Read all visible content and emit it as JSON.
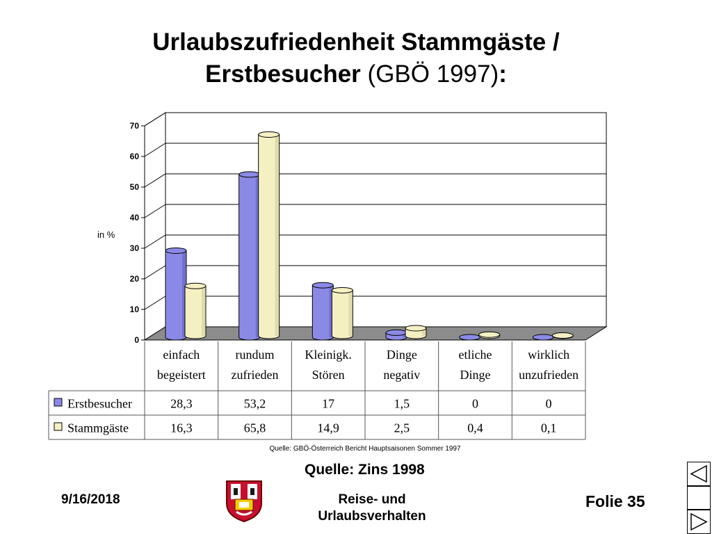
{
  "slide": {
    "title_bold_1": "Urlaubszufriedenheit Stammgäste /",
    "title_bold_2": "Erstbesucher",
    "title_normal": " (GBÖ 1997)",
    "title_colon": ":",
    "quelle": "Quelle: Zins 1998",
    "footer_date": "9/16/2018",
    "footer_center_1": "Reise- und",
    "footer_center_2": "Urlaubsverhalten",
    "footer_folie": "Folie 35"
  },
  "chart_data": {
    "type": "bar",
    "ylabel": "in %",
    "ylim": [
      0,
      70
    ],
    "yticks": [
      "0",
      "10",
      "20",
      "30",
      "40",
      "50",
      "60",
      "70"
    ],
    "categories": [
      [
        "einfach",
        "begeistert"
      ],
      [
        "rundum",
        "zufrieden"
      ],
      [
        "Kleinigk.",
        "Stören"
      ],
      [
        "Dinge",
        "negativ"
      ],
      [
        "etliche",
        "Dinge"
      ],
      [
        "wirklich",
        "unzufrieden"
      ]
    ],
    "series": [
      {
        "name": "Erstbesucher",
        "color": "#8a8ae6",
        "values": [
          28.3,
          53.2,
          17,
          1.5,
          0,
          0
        ],
        "labels": [
          "28,3",
          "53,2",
          "17",
          "1,5",
          "0",
          "0"
        ]
      },
      {
        "name": "Stammgäste",
        "color": "#f5f0c2",
        "values": [
          16.3,
          65.8,
          14.9,
          2.5,
          0.4,
          0.1
        ],
        "labels": [
          "16,3",
          "65,8",
          "14,9",
          "2,5",
          "0,4",
          "0,1"
        ]
      }
    ],
    "source_note": "Quelle: GBÖ-Österreich Bericht Hauptsaisonen Sommer 1997",
    "grid": true,
    "legend": "data-table"
  }
}
